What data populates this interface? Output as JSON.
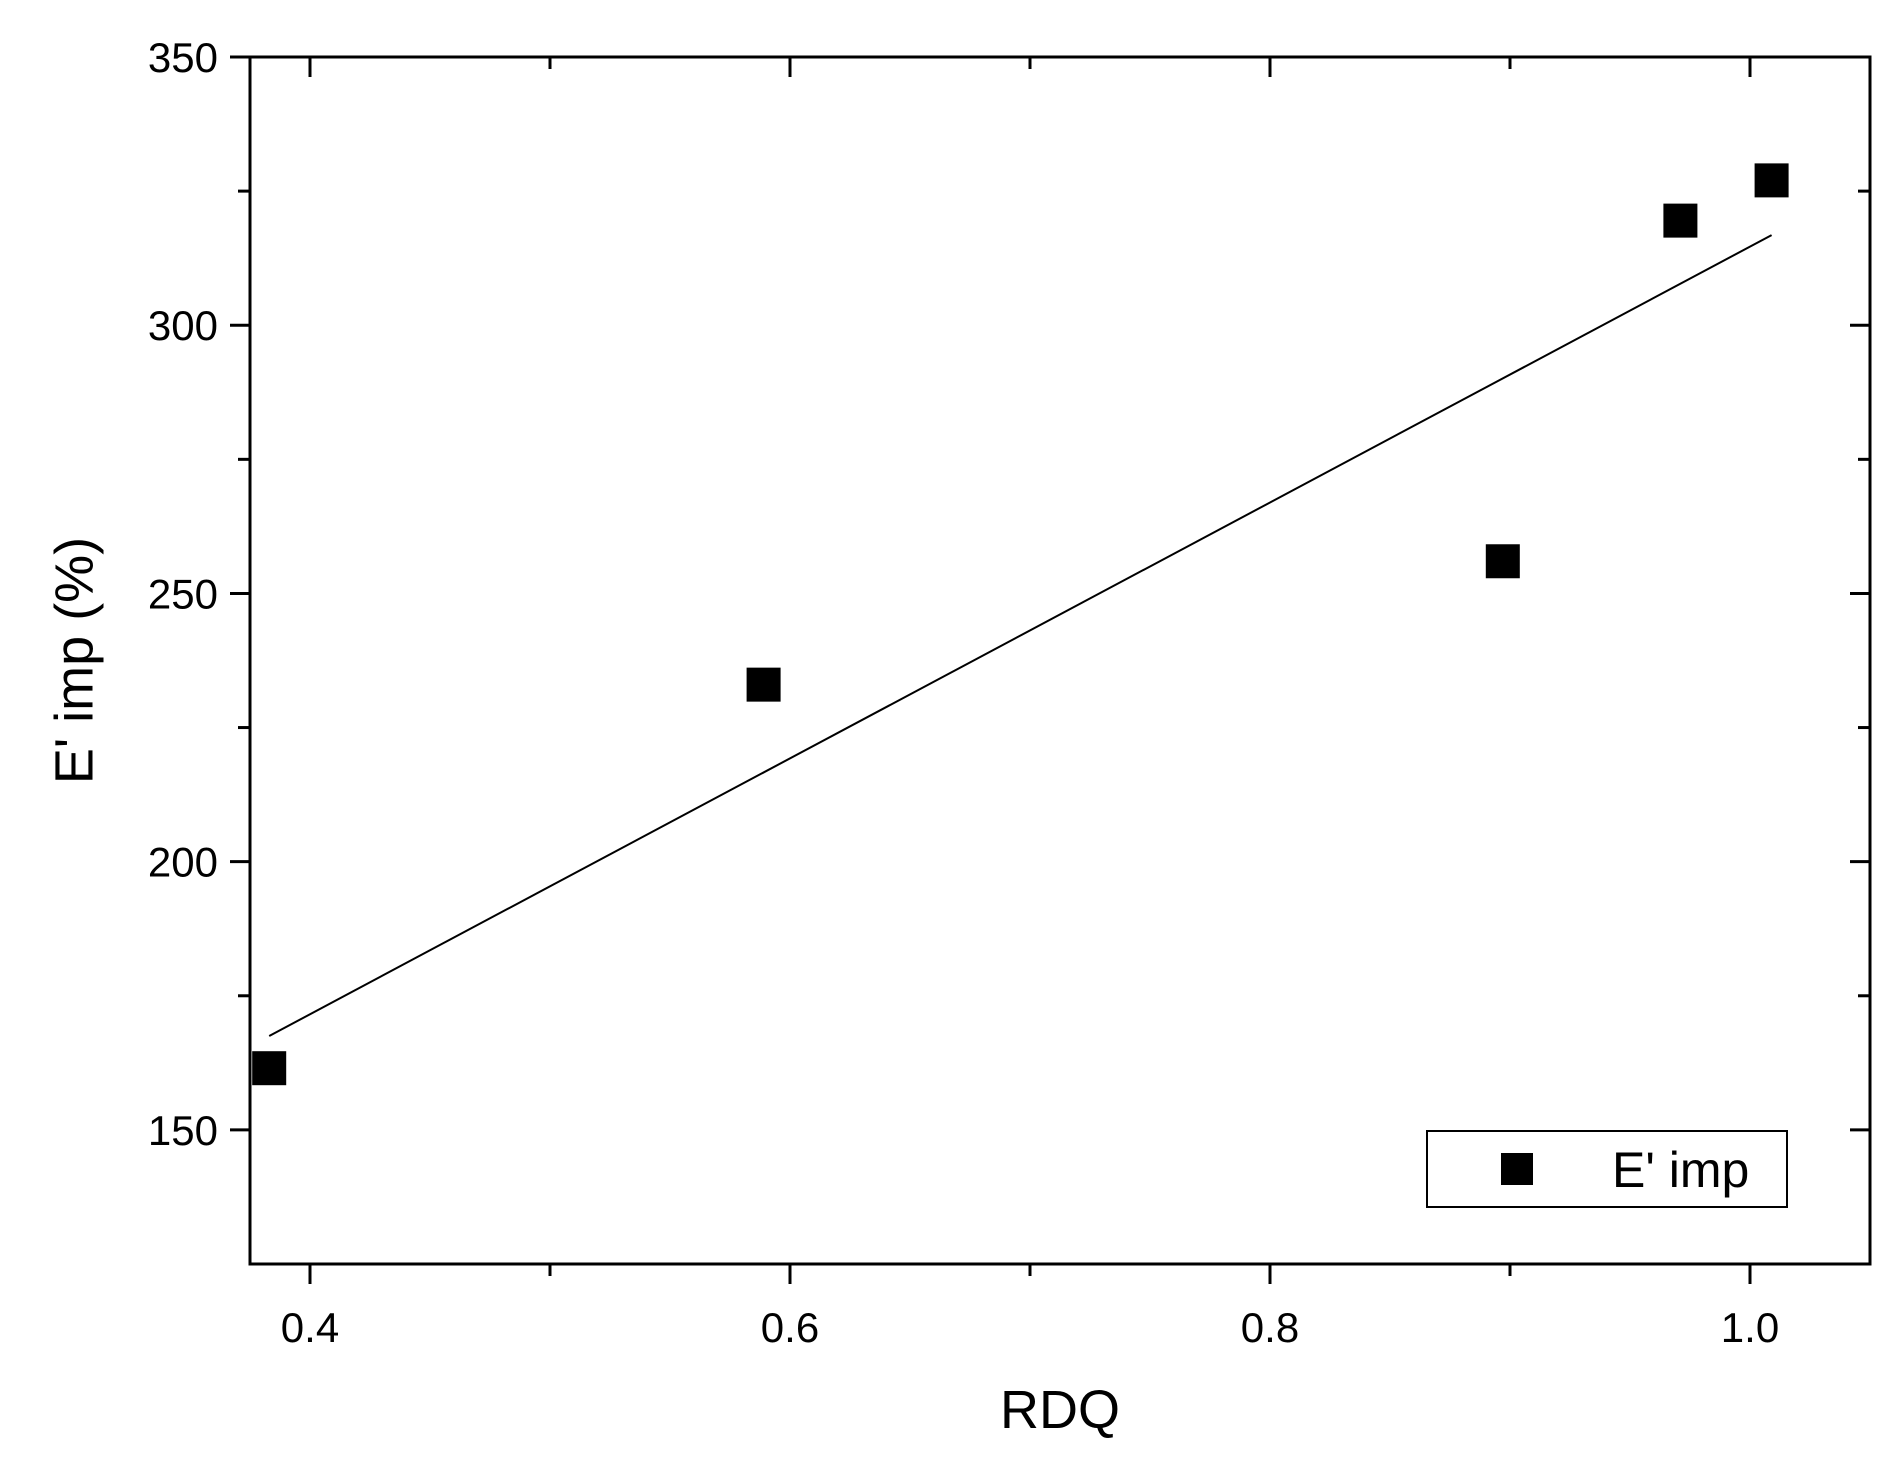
{
  "chart_data": {
    "type": "scatter",
    "title": "",
    "xlabel": "RDQ",
    "ylabel": "E' imp (%)",
    "xlim": [
      0.375,
      1.05
    ],
    "ylim": [
      125,
      350
    ],
    "xticks": [
      0.4,
      0.6,
      0.8,
      1.0
    ],
    "xtick_labels": [
      "0.4",
      "0.6",
      "0.8",
      "1.0"
    ],
    "xminor_ticks": [
      0.5,
      0.7,
      0.9
    ],
    "yticks": [
      150,
      200,
      250,
      300,
      350
    ],
    "ytick_labels": [
      "150",
      "200",
      "250",
      "300",
      "350"
    ],
    "yminor_ticks": [
      175,
      225,
      275,
      325
    ],
    "grid": false,
    "legend_position": "bottom-right",
    "series": [
      {
        "name": "E' imp",
        "marker": "square",
        "color": "#000000",
        "x": [
          0.383,
          0.589,
          0.897,
          0.971,
          1.009
        ],
        "y": [
          161.5,
          233,
          256,
          319.5,
          327
        ]
      }
    ],
    "fit_line": {
      "type": "linear",
      "color": "#000000",
      "x": [
        0.383,
        1.009
      ],
      "y": [
        167.5,
        316.8
      ]
    }
  }
}
